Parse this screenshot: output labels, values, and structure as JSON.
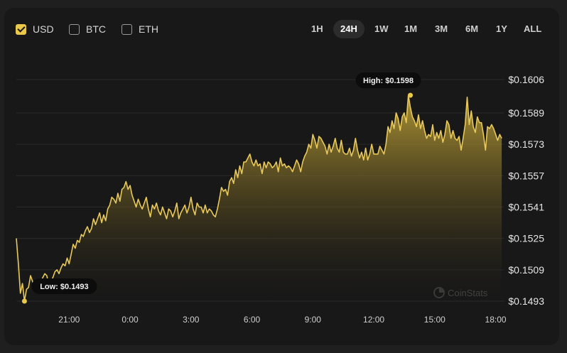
{
  "currency_toggles": [
    {
      "label": "USD",
      "checked": true
    },
    {
      "label": "BTC",
      "checked": false
    },
    {
      "label": "ETH",
      "checked": false
    }
  ],
  "time_ranges": [
    "1H",
    "24H",
    "1W",
    "1M",
    "3M",
    "6M",
    "1Y",
    "ALL"
  ],
  "active_range": "24H",
  "watermark": "CoinStats",
  "colors": {
    "accent": "#e9c84a",
    "line": "#e8c95a",
    "grid": "#2a2a2a"
  },
  "chart_data": {
    "type": "area",
    "y_ticks": [
      "$0.1606",
      "$0.1589",
      "$0.1573",
      "$0.1557",
      "$0.1541",
      "$0.1525",
      "$0.1509",
      "$0.1493"
    ],
    "y_tick_values": [
      0.1606,
      0.1589,
      0.1573,
      0.1557,
      0.1541,
      0.1525,
      0.1509,
      0.1493
    ],
    "x_ticks": [
      "21:00",
      "0:00",
      "3:00",
      "6:00",
      "9:00",
      "12:00",
      "15:00",
      "18:00"
    ],
    "x_tick_hours": [
      2.6,
      5.6,
      8.6,
      11.6,
      14.6,
      17.6,
      20.6,
      23.6
    ],
    "ylim": [
      0.1493,
      0.1606
    ],
    "xlim": [
      0,
      24
    ],
    "grid": true,
    "high": {
      "label": "High: $0.1598",
      "x": 19.4,
      "y": 0.1598
    },
    "low": {
      "label": "Low: $0.1493",
      "x": 0.4,
      "y": 0.1493
    },
    "series": [
      {
        "x": [
          0,
          0.1,
          0.2,
          0.3,
          0.4,
          0.5,
          0.6,
          0.7,
          0.8,
          0.9,
          1.0,
          1.1,
          1.2,
          1.3,
          1.4,
          1.5,
          1.6,
          1.7,
          1.8,
          1.9,
          2.0,
          2.1,
          2.2,
          2.3,
          2.4,
          2.5,
          2.6,
          2.7,
          2.8,
          2.9,
          3.0,
          3.1,
          3.2,
          3.3,
          3.4,
          3.5,
          3.6,
          3.7,
          3.8,
          3.9,
          4.0,
          4.1,
          4.2,
          4.3,
          4.4,
          4.5,
          4.6,
          4.7,
          4.8,
          4.9,
          5.0,
          5.1,
          5.2,
          5.3,
          5.4,
          5.5,
          5.6,
          5.7,
          5.8,
          5.9,
          6.0,
          6.1,
          6.2,
          6.3,
          6.4,
          6.5,
          6.6,
          6.7,
          6.8,
          6.9,
          7.0,
          7.1,
          7.2,
          7.3,
          7.4,
          7.5,
          7.6,
          7.7,
          7.8,
          7.9,
          8.0,
          8.1,
          8.2,
          8.3,
          8.4,
          8.5,
          8.6,
          8.7,
          8.8,
          8.9,
          9.0,
          9.1,
          9.2,
          9.3,
          9.4,
          9.5,
          9.6,
          9.7,
          9.8,
          9.9,
          10.0,
          10.1,
          10.2,
          10.3,
          10.4,
          10.5,
          10.6,
          10.7,
          10.8,
          10.9,
          11.0,
          11.1,
          11.2,
          11.3,
          11.4,
          11.5,
          11.6,
          11.7,
          11.8,
          11.9,
          12.0,
          12.1,
          12.2,
          12.3,
          12.4,
          12.5,
          12.6,
          12.7,
          12.8,
          12.9,
          13.0,
          13.1,
          13.2,
          13.3,
          13.4,
          13.5,
          13.6,
          13.7,
          13.8,
          13.9,
          14.0,
          14.1,
          14.2,
          14.3,
          14.4,
          14.5,
          14.6,
          14.7,
          14.8,
          14.9,
          15.0,
          15.1,
          15.2,
          15.3,
          15.4,
          15.5,
          15.6,
          15.7,
          15.8,
          15.9,
          16.0,
          16.1,
          16.2,
          16.3,
          16.4,
          16.5,
          16.6,
          16.7,
          16.8,
          16.9,
          17.0,
          17.1,
          17.2,
          17.3,
          17.4,
          17.5,
          17.6,
          17.7,
          17.8,
          17.9,
          18.0,
          18.1,
          18.2,
          18.3,
          18.4,
          18.5,
          18.6,
          18.7,
          18.8,
          18.9,
          19.0,
          19.1,
          19.2,
          19.3,
          19.4,
          19.5,
          19.6,
          19.7,
          19.8,
          19.9,
          20.0,
          20.1,
          20.2,
          20.3,
          20.4,
          20.5,
          20.6,
          20.7,
          20.8,
          20.9,
          21.0,
          21.1,
          21.2,
          21.3,
          21.4,
          21.5,
          21.6,
          21.7,
          21.8,
          21.9,
          22.0,
          22.1,
          22.2,
          22.3,
          22.4,
          22.5,
          22.6,
          22.7,
          22.8,
          22.9,
          23.0,
          23.1,
          23.2,
          23.3,
          23.4,
          23.5,
          23.6,
          23.7,
          23.8,
          23.9
        ],
        "values": [
          0.1525,
          0.1512,
          0.1497,
          0.1502,
          0.1493,
          0.1499,
          0.15,
          0.1506,
          0.1503,
          0.1498,
          0.1502,
          0.1499,
          0.1503,
          0.1505,
          0.1507,
          0.1506,
          0.1501,
          0.1503,
          0.1505,
          0.1508,
          0.1509,
          0.1507,
          0.151,
          0.1512,
          0.1511,
          0.1515,
          0.1512,
          0.1517,
          0.1522,
          0.152,
          0.1524,
          0.1523,
          0.1527,
          0.1526,
          0.1529,
          0.1531,
          0.1528,
          0.153,
          0.1535,
          0.1532,
          0.1535,
          0.1538,
          0.1533,
          0.1537,
          0.1534,
          0.154,
          0.1542,
          0.1546,
          0.1545,
          0.1543,
          0.1548,
          0.1544,
          0.155,
          0.1551,
          0.1554,
          0.155,
          0.1552,
          0.1547,
          0.1544,
          0.1541,
          0.1545,
          0.1542,
          0.154,
          0.1543,
          0.1546,
          0.154,
          0.1536,
          0.1542,
          0.154,
          0.1543,
          0.1539,
          0.1537,
          0.1541,
          0.1538,
          0.1535,
          0.154,
          0.1539,
          0.1536,
          0.1539,
          0.1543,
          0.1535,
          0.1538,
          0.154,
          0.1542,
          0.1538,
          0.1541,
          0.1546,
          0.154,
          0.1537,
          0.1543,
          0.1541,
          0.1541,
          0.1538,
          0.1542,
          0.1538,
          0.154,
          0.1539,
          0.1537,
          0.1536,
          0.154,
          0.1545,
          0.1551,
          0.1549,
          0.155,
          0.1547,
          0.1554,
          0.1556,
          0.1553,
          0.156,
          0.1556,
          0.1562,
          0.1558,
          0.1564,
          0.1564,
          0.1566,
          0.1568,
          0.1564,
          0.1562,
          0.1565,
          0.1562,
          0.1563,
          0.1558,
          0.1564,
          0.1561,
          0.1564,
          0.1563,
          0.1561,
          0.1562,
          0.1564,
          0.1559,
          0.1566,
          0.1562,
          0.1563,
          0.1561,
          0.1562,
          0.1561,
          0.1559,
          0.1562,
          0.1565,
          0.1563,
          0.1559,
          0.1564,
          0.1567,
          0.1569,
          0.1573,
          0.1571,
          0.1578,
          0.1575,
          0.1571,
          0.1577,
          0.1576,
          0.1574,
          0.1572,
          0.1568,
          0.1573,
          0.1569,
          0.1572,
          0.1576,
          0.1571,
          0.1569,
          0.1575,
          0.1569,
          0.1568,
          0.1568,
          0.1571,
          0.1567,
          0.157,
          0.1576,
          0.157,
          0.1566,
          0.1569,
          0.1565,
          0.1571,
          0.1565,
          0.1568,
          0.1573,
          0.1568,
          0.1568,
          0.1568,
          0.1572,
          0.157,
          0.1568,
          0.1573,
          0.1582,
          0.1579,
          0.1585,
          0.1581,
          0.1589,
          0.1586,
          0.158,
          0.1587,
          0.1589,
          0.1584,
          0.1598,
          0.1592,
          0.1587,
          0.1585,
          0.1582,
          0.1588,
          0.1581,
          0.1585,
          0.158,
          0.1576,
          0.1578,
          0.1577,
          0.1583,
          0.1575,
          0.1579,
          0.1576,
          0.158,
          0.1574,
          0.1578,
          0.1585,
          0.1583,
          0.1576,
          0.158,
          0.1576,
          0.1575,
          0.1577,
          0.157,
          0.1576,
          0.1583,
          0.1597,
          0.1583,
          0.159,
          0.1582,
          0.1579,
          0.1587,
          0.1584,
          0.1584,
          0.1578,
          0.157,
          0.1582,
          0.1581,
          0.1583,
          0.1581,
          0.1578,
          0.1575,
          0.1578,
          0.1576
        ]
      }
    ]
  }
}
